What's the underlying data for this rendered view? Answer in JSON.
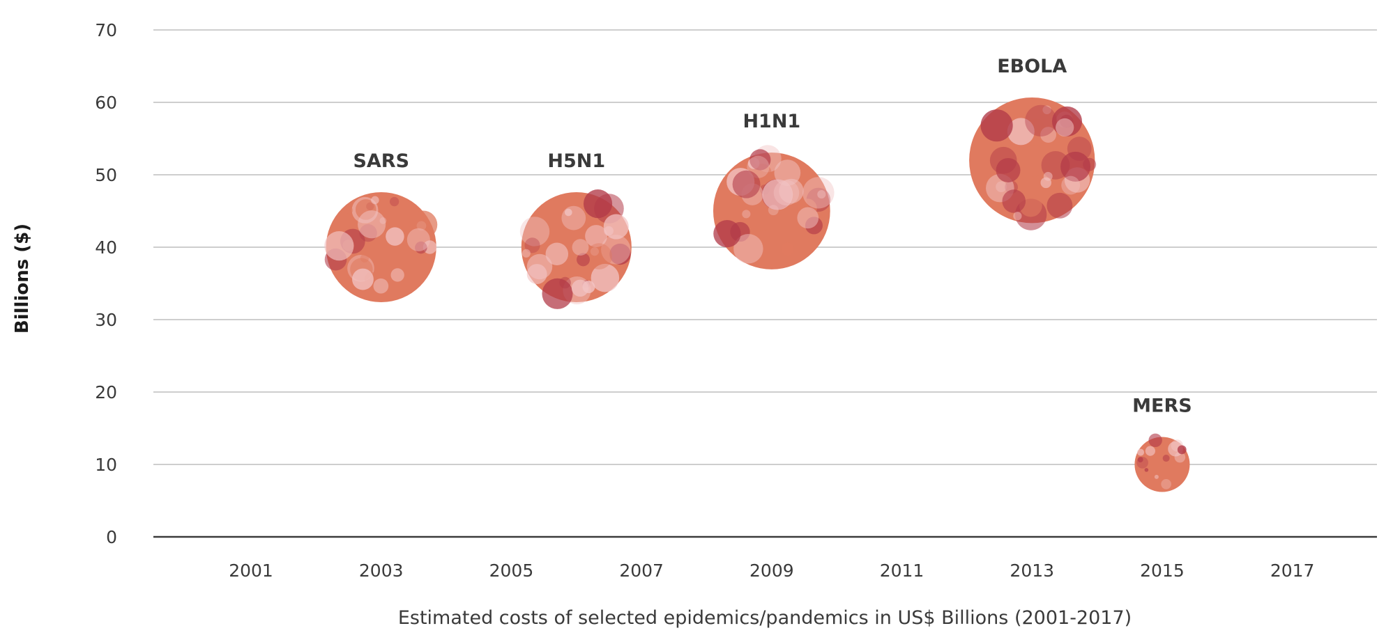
{
  "chart_data": {
    "type": "scatter",
    "title": "",
    "xlabel": "Estimated costs of selected epidemics/pandemics in US$ Billions (2001-2017)",
    "ylabel": "Billions ($)",
    "xlim": [
      1999.5,
      2018.3
    ],
    "ylim": [
      0,
      70
    ],
    "x_ticks": [
      "2001",
      "2003",
      "2005",
      "2007",
      "2009",
      "2011",
      "2013",
      "2015",
      "2017"
    ],
    "y_ticks": [
      "0",
      "10",
      "20",
      "30",
      "40",
      "50",
      "60",
      "70"
    ],
    "grid": true,
    "legend": "none",
    "points": [
      {
        "label": "SARS",
        "x": 2003,
        "y": 40
      },
      {
        "label": "H5N1",
        "x": 2006,
        "y": 40
      },
      {
        "label": "H1N1",
        "x": 2009,
        "y": 45
      },
      {
        "label": "EBOLA",
        "x": 2013,
        "y": 52
      },
      {
        "label": "MERS",
        "x": 2015,
        "y": 10
      }
    ]
  },
  "colors": {
    "bubble": "#e07a5f",
    "dark": "#b23a48",
    "light": "#f2c4c4",
    "grid": "#bdbdbd",
    "text": "#3a3a3a"
  }
}
